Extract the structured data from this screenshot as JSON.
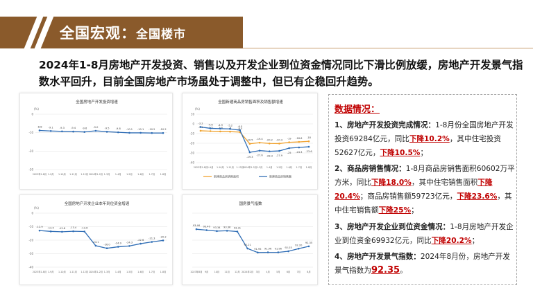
{
  "header": {
    "title": "全国宏观：",
    "subtitle": "全国楼市"
  },
  "headline": "2024年1-8月房地产开发投资、销售以及开发企业到位资金情况同比下滑比例放缓，房地产开发景气指数水平回升，目前全国房地产市场虽处于调整中，但已有企稳回升趋势。",
  "colors": {
    "banner": "#8a5a2b",
    "accent_red": "#c00000",
    "line_blue": "#2f6db5",
    "line_orange": "#f0a22e"
  },
  "charts": [
    {
      "type": "line",
      "title": "全国房地产开发投资增速",
      "unit": "(%)",
      "categories": [
        "2023年1-8月",
        "1-9月",
        "1-10月",
        "1-11月",
        "1-12月",
        "2024年1-2月",
        "1-3月",
        "1-4月",
        "1-5月",
        "1-6月",
        "1-7月",
        "1-8月"
      ],
      "series": [
        {
          "values": [
            -8.8,
            -9.1,
            -9.3,
            -9.4,
            -9.6,
            -9.0,
            -9.5,
            -9.8,
            -10.1,
            -10.1,
            -10.2,
            -10.2
          ]
        }
      ],
      "value_labels": [
        "-8.8",
        "-9.1",
        "-9.3",
        "-9.4",
        "-9.6",
        "-9.0",
        "-9.5",
        "-9.8",
        "-10.1",
        "-10.1",
        "-10.2",
        "-10.2"
      ],
      "ylim": [
        -30,
        0
      ],
      "yticks": [
        "0",
        "-10",
        "-20",
        "-30"
      ]
    },
    {
      "type": "line",
      "title": "全国新建商品房销售面积及销售额增速",
      "unit": "(%)",
      "categories": [
        "2023年1-8月",
        "1-9月",
        "1-10月",
        "1-11月",
        "1-12月",
        "2024年1-2月",
        "1-3月",
        "1-4月",
        "1-5月",
        "1-6月",
        "1-7月",
        "1-8月"
      ],
      "series": [
        {
          "name": "新建商品房销售面积",
          "color": "#f0a22e",
          "values": [
            -7.1,
            -7.5,
            -7.8,
            -8.0,
            -8.5,
            -20.5,
            -19.4,
            -20.2,
            -20.3,
            -19.0,
            -18.6,
            -18.0
          ]
        },
        {
          "name": "新建商品房销售额",
          "color": "#2f6db5",
          "values": [
            -3.2,
            -4.6,
            -4.9,
            -5.2,
            -6.5,
            -29.3,
            -27.6,
            -28.3,
            -27.9,
            -25.0,
            -24.3,
            -23.6
          ]
        }
      ],
      "ylim": [
        -40,
        10
      ],
      "yticks": [
        "10",
        "0",
        "-10",
        "-20",
        "-30",
        "-40"
      ]
    },
    {
      "type": "line",
      "title": "全国房地产开发企业本年到位资金增速",
      "unit": "(%)",
      "categories": [
        "2023年1-8月",
        "1-9月",
        "1-10月",
        "1-11月",
        "1-12月",
        "2024年1-2月",
        "1-3月",
        "1-4月",
        "1-5月",
        "1-6月",
        "1-7月",
        "1-8月"
      ],
      "series": [
        {
          "values": [
            -12.9,
            -13.5,
            -13.8,
            -13.4,
            -13.6,
            -24.1,
            -26.0,
            -24.9,
            -24.3,
            -22.6,
            -21.3,
            -20.2
          ]
        }
      ],
      "value_labels": [
        "-12.9",
        "-13.5",
        "-13.8",
        "-13.4",
        "-13.6",
        "-24.1",
        "-26.0",
        "-24.9",
        "-24.3",
        "-22.6",
        "-21.3",
        "-20.2"
      ],
      "ylim": [
        -40,
        0
      ],
      "yticks": [
        "0",
        "-10",
        "-20",
        "-30",
        "-40"
      ]
    },
    {
      "type": "line",
      "title": "国房景气指数",
      "categories": [
        "2023年8月",
        "9月",
        "10月",
        "11月",
        "12月",
        "2024年2月",
        "3月",
        "4月",
        "5月",
        "6月",
        "7月",
        "8月"
      ],
      "series": [
        {
          "values": [
            93.46,
            93.4,
            93.34,
            93.36,
            93.31,
            92.21,
            91.95,
            91.96,
            91.96,
            92.03,
            92.2,
            92.35
          ]
        }
      ],
      "value_labels": [
        "93.46",
        "93.40",
        "93.34",
        "93.36",
        "93.31",
        "92.21",
        "91.95",
        "91.96",
        "91.96",
        "92.03",
        "92.20",
        "92.35"
      ],
      "ylim": [
        91,
        94.5
      ]
    }
  ],
  "info": {
    "title": "数据情况：",
    "items": [
      {
        "runs": [
          {
            "t": "1、房地产开发投资完成情况：",
            "s": "bold"
          },
          {
            "t": "1-8月份全国房地产开发投资69284亿元，同比"
          },
          {
            "t": "下降10.2%",
            "s": "red"
          },
          {
            "t": "，其中住宅投资52627亿元，"
          },
          {
            "t": "下降10.5%",
            "s": "red"
          },
          {
            "t": "；"
          }
        ]
      },
      {
        "runs": [
          {
            "t": "2、商品房销售情况：",
            "s": "bold"
          },
          {
            "t": "1-8月商品房销售面积60602万平方米，同比"
          },
          {
            "t": "下降18.0%",
            "s": "red"
          },
          {
            "t": "，其中住宅销售面积"
          },
          {
            "t": "下降20.4%",
            "s": "red"
          },
          {
            "t": "；商品房销售额59723亿元，"
          },
          {
            "t": "下降23.6%",
            "s": "red"
          },
          {
            "t": "，其中住宅销售额"
          },
          {
            "t": "下降25%",
            "s": "red"
          },
          {
            "t": "；"
          }
        ]
      },
      {
        "runs": [
          {
            "t": "3、房地产开发企业到位资金情况：",
            "s": "bold"
          },
          {
            "t": "1-8月房地产开发企业到位资金69932亿元，同比"
          },
          {
            "t": "下降20.2%",
            "s": "red"
          },
          {
            "t": "；"
          }
        ]
      },
      {
        "runs": [
          {
            "t": "4、房地产开发景气指数：",
            "s": "bold"
          },
          {
            "t": "2024年8月份，房地产开发景气指数为"
          },
          {
            "t": "92.35",
            "s": "red big"
          },
          {
            "t": "。"
          }
        ]
      }
    ]
  }
}
